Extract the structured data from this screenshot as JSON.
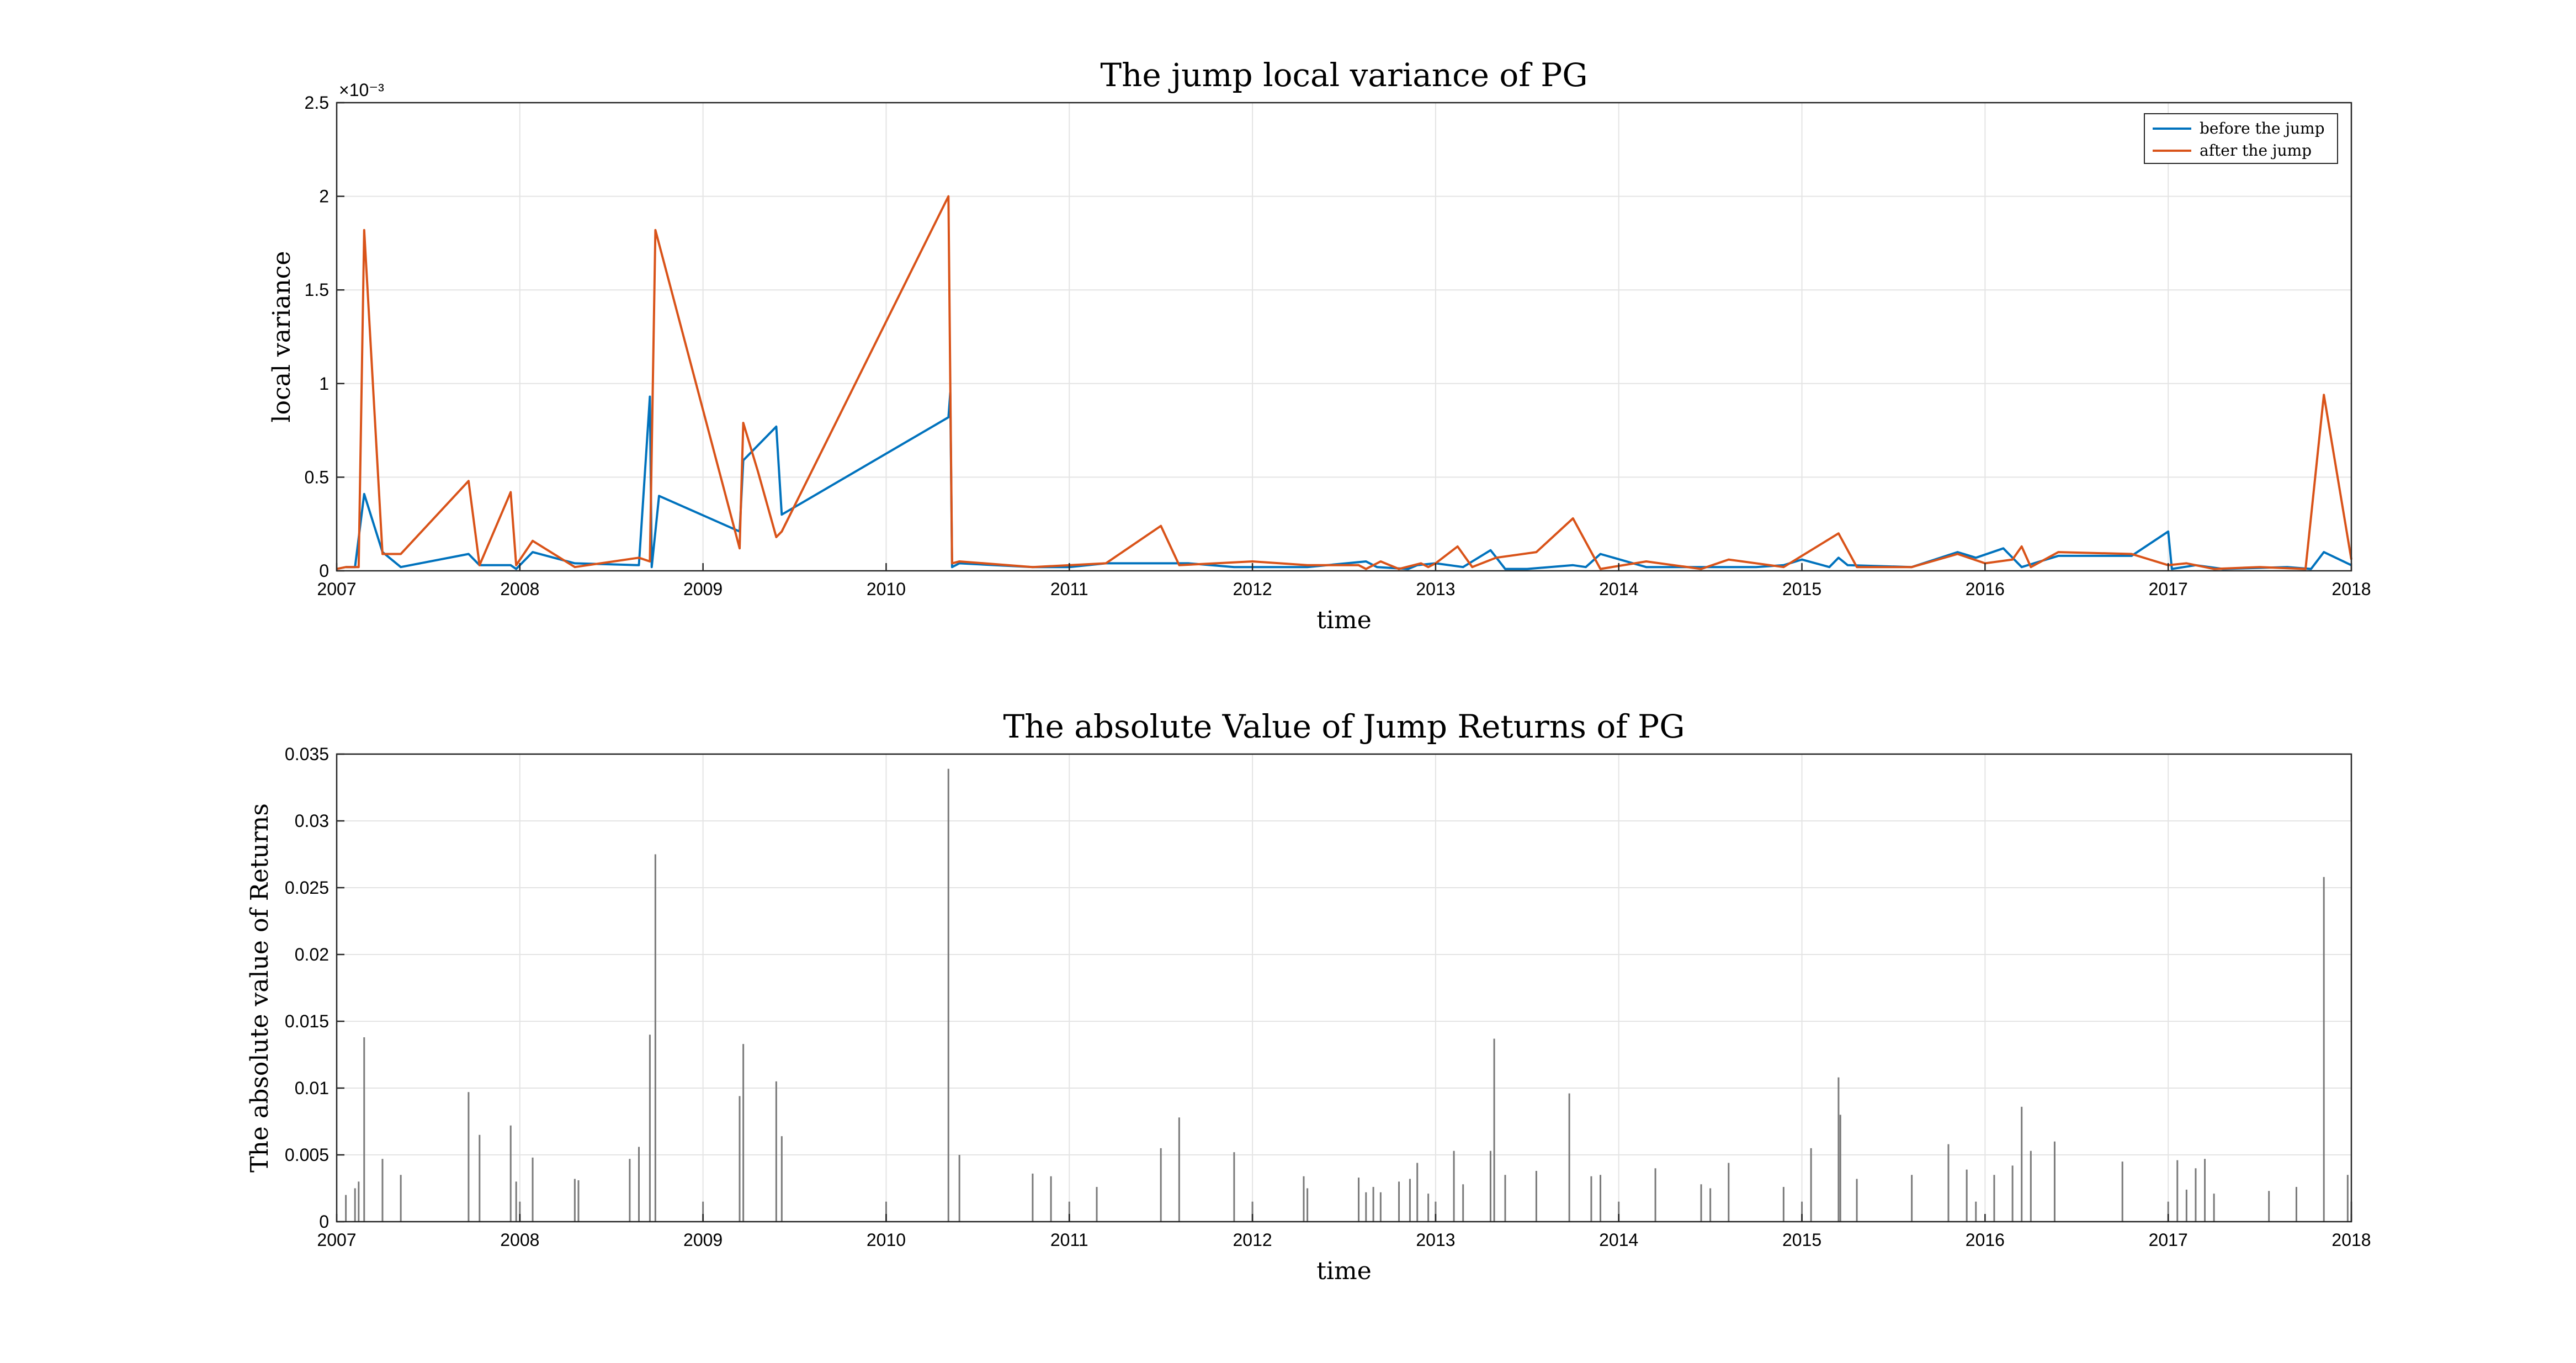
{
  "chart_data": [
    {
      "type": "line",
      "title": "The jump local variance of PG",
      "xlabel": "time",
      "ylabel": "local variance",
      "xlim": [
        2007,
        2018
      ],
      "ylim": [
        0,
        0.0025
      ],
      "x_ticks": [
        "2007",
        "2008",
        "2009",
        "2010",
        "2011",
        "2012",
        "2013",
        "2014",
        "2015",
        "2016",
        "2017",
        "2018"
      ],
      "y_ticks": [
        {
          "value": 0,
          "label": "0"
        },
        {
          "value": 0.0005,
          "label": "0.5"
        },
        {
          "value": 0.001,
          "label": "1"
        },
        {
          "value": 0.0015,
          "label": "1.5"
        },
        {
          "value": 0.002,
          "label": "2"
        },
        {
          "value": 0.0025,
          "label": "2.5"
        }
      ],
      "y_exponent_label": "×10⁻³",
      "grid": true,
      "legend_position": "top-right",
      "series": [
        {
          "name": "before the jump",
          "color": "#0072BD",
          "points": [
            [
              2007.05,
              2e-05
            ],
            [
              2007.1,
              2e-05
            ],
            [
              2007.15,
              0.00041
            ],
            [
              2007.25,
              0.0001
            ],
            [
              2007.35,
              2e-05
            ],
            [
              2007.72,
              9e-05
            ],
            [
              2007.78,
              3e-05
            ],
            [
              2007.95,
              3e-05
            ],
            [
              2007.98,
              1e-05
            ],
            [
              2008.07,
              0.0001
            ],
            [
              2008.3,
              4e-05
            ],
            [
              2008.65,
              3e-05
            ],
            [
              2008.71,
              0.00093
            ],
            [
              2008.72,
              2e-05
            ],
            [
              2008.74,
              0.00021
            ],
            [
              2008.76,
              0.0004
            ],
            [
              2009.2,
              0.00021
            ],
            [
              2009.22,
              0.00059
            ],
            [
              2009.4,
              0.00077
            ],
            [
              2009.43,
              0.0003
            ],
            [
              2010.34,
              0.00082
            ],
            [
              2010.35,
              0.00095
            ],
            [
              2010.36,
              2e-05
            ],
            [
              2010.4,
              4e-05
            ],
            [
              2010.8,
              2e-05
            ],
            [
              2011.0,
              2e-05
            ],
            [
              2011.2,
              4e-05
            ],
            [
              2011.5,
              4e-05
            ],
            [
              2011.65,
              4e-05
            ],
            [
              2011.9,
              2e-05
            ],
            [
              2012.3,
              2e-05
            ],
            [
              2012.62,
              5e-05
            ],
            [
              2012.68,
              2e-05
            ],
            [
              2012.85,
              1e-05
            ],
            [
              2012.9,
              3e-05
            ],
            [
              2013.0,
              4e-05
            ],
            [
              2013.15,
              2e-05
            ],
            [
              2013.3,
              0.00011
            ],
            [
              2013.38,
              1e-05
            ],
            [
              2013.5,
              1e-05
            ],
            [
              2013.75,
              3e-05
            ],
            [
              2013.82,
              2e-05
            ],
            [
              2013.9,
              9e-05
            ],
            [
              2014.15,
              2e-05
            ],
            [
              2014.5,
              2e-05
            ],
            [
              2014.75,
              2e-05
            ],
            [
              2014.9,
              3e-05
            ],
            [
              2015.0,
              6e-05
            ],
            [
              2015.15,
              2e-05
            ],
            [
              2015.2,
              7e-05
            ],
            [
              2015.25,
              3e-05
            ],
            [
              2015.6,
              2e-05
            ],
            [
              2015.85,
              0.0001
            ],
            [
              2015.95,
              7e-05
            ],
            [
              2016.1,
              0.00012
            ],
            [
              2016.2,
              2e-05
            ],
            [
              2016.4,
              8e-05
            ],
            [
              2016.8,
              8e-05
            ],
            [
              2017.0,
              0.00021
            ],
            [
              2017.02,
              1e-05
            ],
            [
              2017.15,
              3e-05
            ],
            [
              2017.3,
              1e-05
            ],
            [
              2017.65,
              2e-05
            ],
            [
              2017.78,
              1e-05
            ],
            [
              2017.85,
              0.0001
            ],
            [
              2018.0,
              3e-05
            ]
          ]
        },
        {
          "name": "after the jump",
          "color": "#D95319",
          "points": [
            [
              2007.0,
              1e-05
            ],
            [
              2007.05,
              2e-05
            ],
            [
              2007.12,
              2e-05
            ],
            [
              2007.15,
              0.00182
            ],
            [
              2007.25,
              9e-05
            ],
            [
              2007.35,
              9e-05
            ],
            [
              2007.72,
              0.00048
            ],
            [
              2007.78,
              3e-05
            ],
            [
              2007.95,
              0.00042
            ],
            [
              2007.98,
              3e-05
            ],
            [
              2008.07,
              0.00016
            ],
            [
              2008.3,
              2e-05
            ],
            [
              2008.65,
              7e-05
            ],
            [
              2008.71,
              5e-05
            ],
            [
              2008.74,
              0.00182
            ],
            [
              2009.2,
              0.00012
            ],
            [
              2009.22,
              0.00079
            ],
            [
              2009.3,
              0.00053
            ],
            [
              2009.4,
              0.00018
            ],
            [
              2009.43,
              0.00021
            ],
            [
              2010.34,
              0.002
            ],
            [
              2010.36,
              4e-05
            ],
            [
              2010.4,
              5e-05
            ],
            [
              2010.8,
              2e-05
            ],
            [
              2011.2,
              4e-05
            ],
            [
              2011.5,
              0.00024
            ],
            [
              2011.6,
              3e-05
            ],
            [
              2012.0,
              5e-05
            ],
            [
              2012.3,
              3e-05
            ],
            [
              2012.58,
              3e-05
            ],
            [
              2012.62,
              1e-05
            ],
            [
              2012.7,
              5e-05
            ],
            [
              2012.8,
              1e-05
            ],
            [
              2012.92,
              4e-05
            ],
            [
              2012.96,
              2e-05
            ],
            [
              2013.0,
              4e-05
            ],
            [
              2013.12,
              0.00013
            ],
            [
              2013.2,
              2e-05
            ],
            [
              2013.33,
              7e-05
            ],
            [
              2013.55,
              0.0001
            ],
            [
              2013.75,
              0.00028
            ],
            [
              2013.9,
              1e-05
            ],
            [
              2014.15,
              5e-05
            ],
            [
              2014.45,
              1e-05
            ],
            [
              2014.6,
              6e-05
            ],
            [
              2014.9,
              2e-05
            ],
            [
              2015.2,
              0.0002
            ],
            [
              2015.3,
              2e-05
            ],
            [
              2015.6,
              2e-05
            ],
            [
              2015.85,
              9e-05
            ],
            [
              2016.0,
              4e-05
            ],
            [
              2016.15,
              6e-05
            ],
            [
              2016.2,
              0.00013
            ],
            [
              2016.25,
              2e-05
            ],
            [
              2016.4,
              0.0001
            ],
            [
              2016.8,
              9e-05
            ],
            [
              2017.0,
              3e-05
            ],
            [
              2017.1,
              4e-05
            ],
            [
              2017.25,
              1e-05
            ],
            [
              2017.5,
              2e-05
            ],
            [
              2017.75,
              1e-05
            ],
            [
              2017.85,
              0.00094
            ],
            [
              2018.0,
              6e-05
            ]
          ]
        }
      ]
    },
    {
      "type": "bar",
      "title": "The absolute Value of Jump Returns of PG",
      "xlabel": "time",
      "ylabel": "The absolute value of Returns",
      "xlim": [
        2007,
        2018
      ],
      "ylim": [
        0,
        0.035
      ],
      "x_ticks": [
        "2007",
        "2008",
        "2009",
        "2010",
        "2011",
        "2012",
        "2013",
        "2014",
        "2015",
        "2016",
        "2017",
        "2018"
      ],
      "y_ticks": [
        {
          "value": 0,
          "label": "0"
        },
        {
          "value": 0.005,
          "label": "0.005"
        },
        {
          "value": 0.01,
          "label": "0.01"
        },
        {
          "value": 0.015,
          "label": "0.015"
        },
        {
          "value": 0.02,
          "label": "0.02"
        },
        {
          "value": 0.025,
          "label": "0.025"
        },
        {
          "value": 0.03,
          "label": "0.03"
        },
        {
          "value": 0.035,
          "label": "0.035"
        }
      ],
      "grid": true,
      "bar_color": "#7a7a7a",
      "points": [
        [
          2007.05,
          0.002
        ],
        [
          2007.1,
          0.0025
        ],
        [
          2007.12,
          0.003
        ],
        [
          2007.15,
          0.0138
        ],
        [
          2007.25,
          0.0047
        ],
        [
          2007.35,
          0.0035
        ],
        [
          2007.72,
          0.0097
        ],
        [
          2007.78,
          0.0065
        ],
        [
          2007.95,
          0.0072
        ],
        [
          2007.98,
          0.003
        ],
        [
          2008.0,
          0.0015
        ],
        [
          2008.07,
          0.0048
        ],
        [
          2008.3,
          0.0032
        ],
        [
          2008.32,
          0.0031
        ],
        [
          2008.6,
          0.0047
        ],
        [
          2008.65,
          0.0056
        ],
        [
          2008.71,
          0.014
        ],
        [
          2008.74,
          0.0275
        ],
        [
          2009.0,
          0.0015
        ],
        [
          2009.2,
          0.0094
        ],
        [
          2009.22,
          0.0133
        ],
        [
          2009.4,
          0.0105
        ],
        [
          2009.43,
          0.0064
        ],
        [
          2010.0,
          0.0015
        ],
        [
          2010.34,
          0.0339
        ],
        [
          2010.4,
          0.005
        ],
        [
          2010.8,
          0.0036
        ],
        [
          2010.9,
          0.0034
        ],
        [
          2011.0,
          0.0015
        ],
        [
          2011.15,
          0.0026
        ],
        [
          2011.5,
          0.0055
        ],
        [
          2011.6,
          0.0078
        ],
        [
          2011.9,
          0.0052
        ],
        [
          2012.0,
          0.0015
        ],
        [
          2012.28,
          0.0034
        ],
        [
          2012.3,
          0.0025
        ],
        [
          2012.58,
          0.0033
        ],
        [
          2012.62,
          0.0022
        ],
        [
          2012.66,
          0.0026
        ],
        [
          2012.7,
          0.0022
        ],
        [
          2012.8,
          0.003
        ],
        [
          2012.86,
          0.0032
        ],
        [
          2012.9,
          0.0044
        ],
        [
          2012.96,
          0.0021
        ],
        [
          2013.0,
          0.0015
        ],
        [
          2013.1,
          0.0053
        ],
        [
          2013.15,
          0.0028
        ],
        [
          2013.3,
          0.0053
        ],
        [
          2013.32,
          0.0137
        ],
        [
          2013.38,
          0.0035
        ],
        [
          2013.55,
          0.0038
        ],
        [
          2013.73,
          0.0096
        ],
        [
          2013.85,
          0.0034
        ],
        [
          2013.9,
          0.0035
        ],
        [
          2014.0,
          0.0015
        ],
        [
          2014.2,
          0.004
        ],
        [
          2014.45,
          0.0028
        ],
        [
          2014.5,
          0.0025
        ],
        [
          2014.6,
          0.0044
        ],
        [
          2014.9,
          0.0026
        ],
        [
          2015.0,
          0.0015
        ],
        [
          2015.05,
          0.0055
        ],
        [
          2015.2,
          0.0108
        ],
        [
          2015.21,
          0.008
        ],
        [
          2015.3,
          0.0032
        ],
        [
          2015.6,
          0.0035
        ],
        [
          2015.8,
          0.0058
        ],
        [
          2015.9,
          0.0039
        ],
        [
          2015.95,
          0.0015
        ],
        [
          2016.05,
          0.0035
        ],
        [
          2016.15,
          0.0042
        ],
        [
          2016.2,
          0.0086
        ],
        [
          2016.25,
          0.0053
        ],
        [
          2016.38,
          0.006
        ],
        [
          2016.75,
          0.0045
        ],
        [
          2017.0,
          0.0015
        ],
        [
          2017.05,
          0.0046
        ],
        [
          2017.1,
          0.0024
        ],
        [
          2017.15,
          0.004
        ],
        [
          2017.2,
          0.0047
        ],
        [
          2017.25,
          0.0021
        ],
        [
          2017.55,
          0.0023
        ],
        [
          2017.7,
          0.0026
        ],
        [
          2017.85,
          0.0258
        ],
        [
          2017.98,
          0.0035
        ],
        [
          2018.0,
          0.0015
        ]
      ]
    }
  ]
}
